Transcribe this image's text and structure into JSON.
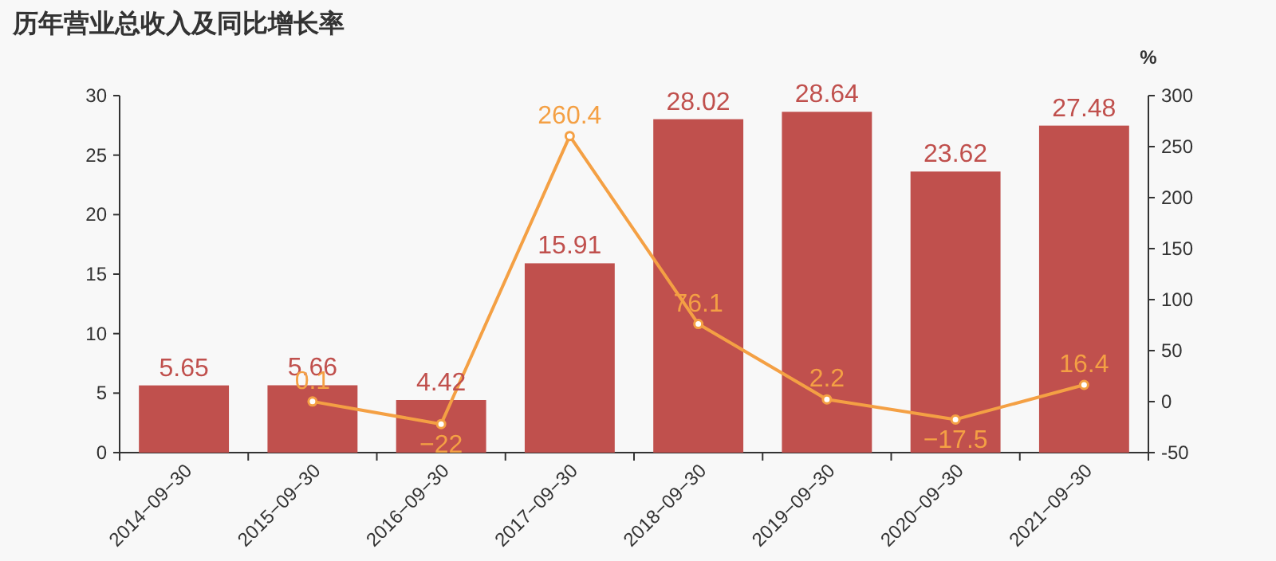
{
  "chart_data": {
    "type": "bar",
    "title": "历年营业总收入及同比增长率",
    "y2label": "%",
    "categories": [
      "2014−09−30",
      "2015−09−30",
      "2016−09−30",
      "2017−09−30",
      "2018−09−30",
      "2019−09−30",
      "2020−09−30",
      "2021−09−30"
    ],
    "ylim": [
      0,
      30
    ],
    "yticks": [
      0,
      5,
      10,
      15,
      20,
      25,
      30
    ],
    "y2lim": [
      -50,
      300
    ],
    "y2ticks": [
      -50,
      0,
      50,
      100,
      150,
      200,
      250,
      300
    ],
    "grid": false,
    "series": [
      {
        "color": "#c0504d",
        "values": [
          5.65,
          5.66,
          4.42,
          15.91,
          28.02,
          28.64,
          23.62,
          27.48
        ],
        "value_labels": [
          "5.65",
          "5.66",
          "4.42",
          "15.91",
          "28.02",
          "28.64",
          "23.62",
          "27.48"
        ]
      },
      {
        "type": "line",
        "axis": "y2",
        "color": "#f4a044",
        "marker": "circle",
        "values": [
          null,
          0.1,
          -22,
          260.4,
          76.1,
          2.2,
          -17.5,
          16.4
        ],
        "value_labels": [
          null,
          "0.1",
          "−22",
          "260.4",
          "76.1",
          "2.2",
          "−17.5",
          "16.4"
        ]
      }
    ]
  }
}
